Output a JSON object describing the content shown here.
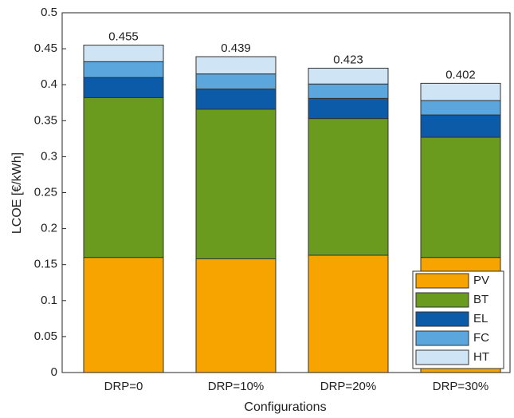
{
  "chart_data": {
    "type": "stacked_bar",
    "categories": [
      "DRP=0",
      "DRP=10%",
      "DRP=20%",
      "DRP=30%"
    ],
    "series": [
      {
        "name": "PV",
        "color": "#f7a400",
        "values": [
          0.16,
          0.158,
          0.163,
          0.16
        ]
      },
      {
        "name": "BT",
        "color": "#6b9b1e",
        "values": [
          0.222,
          0.208,
          0.19,
          0.167
        ]
      },
      {
        "name": "EL",
        "color": "#0b5ba8",
        "values": [
          0.028,
          0.028,
          0.028,
          0.031
        ]
      },
      {
        "name": "FC",
        "color": "#5aa6dd",
        "values": [
          0.022,
          0.021,
          0.02,
          0.02
        ]
      },
      {
        "name": "HT",
        "color": "#cfe4f4",
        "values": [
          0.023,
          0.024,
          0.022,
          0.024
        ]
      }
    ],
    "totals": [
      0.455,
      0.439,
      0.423,
      0.402
    ],
    "x_label": "Configurations",
    "y_label": "LCOE [€/kWh]",
    "ylim": [
      0,
      0.5
    ],
    "yticks": [
      0,
      0.05,
      0.1,
      0.15,
      0.2,
      0.25,
      0.3,
      0.35,
      0.4,
      0.45,
      0.5
    ],
    "legend": "lower right",
    "grid": false
  }
}
